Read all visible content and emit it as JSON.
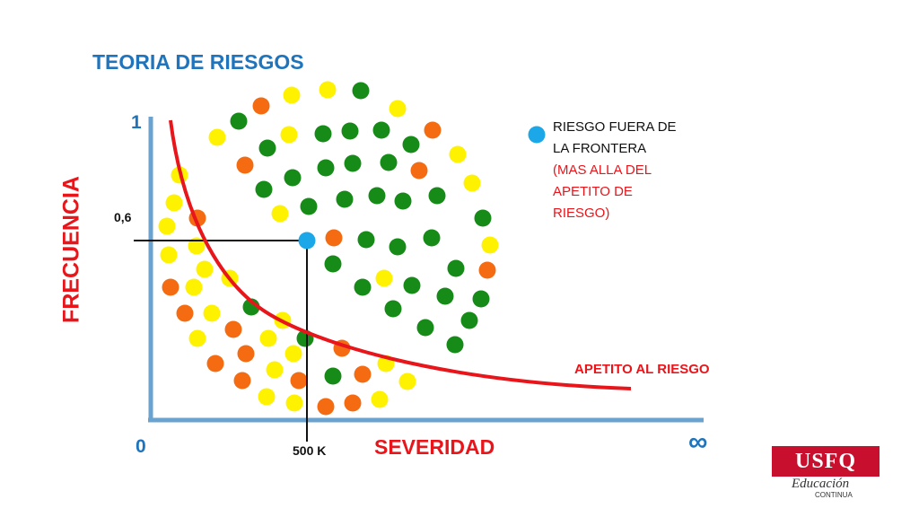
{
  "title": "TEORIA DE RIESGOS",
  "axes": {
    "y_label": "FRECUENCIA",
    "y_top_label": "1",
    "y_zero_label": "0",
    "y_marker_label": "0,6",
    "x_label": "SEVERIDAD",
    "x_marker_label": "500 K",
    "x_end_symbol": "∞"
  },
  "curve_label": "APETITO AL RIESGO",
  "legend": {
    "line1": "RIESGO FUERA DE",
    "line2": "LA FRONTERA",
    "line3": "(MAS ALLA DEL",
    "line4": "APETITO DE",
    "line5": "RIESGO)"
  },
  "logo": {
    "name": "USFQ",
    "subtitle": "Educación",
    "subtitle2": "CONTINUA"
  },
  "colors": {
    "axis": "#6aa3d0",
    "curve": "#e8151b",
    "highlight": "#1ba7e8",
    "green": "#168b18",
    "yellow": "#fff200",
    "orange": "#f46b12"
  }
}
